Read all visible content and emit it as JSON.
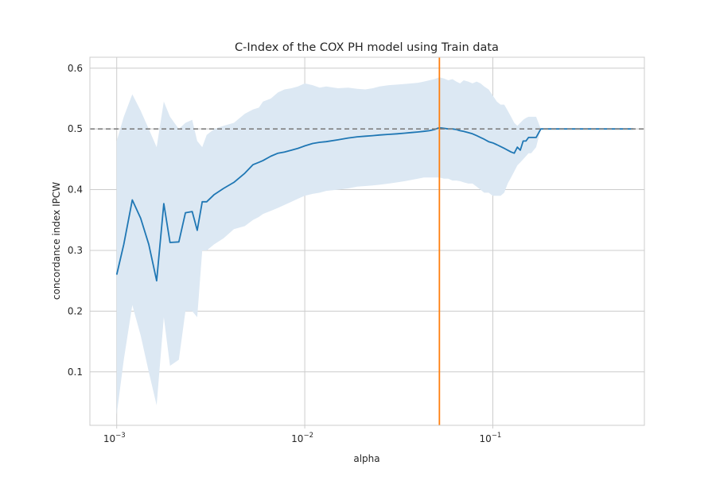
{
  "chart_data": {
    "type": "line",
    "title": "C-Index of the COX PH model using Train data",
    "xlabel": "alpha",
    "ylabel": "concordance index IPCW",
    "x_scale": "log",
    "xlim": [
      0.00072,
      0.64
    ],
    "ylim": [
      0.012,
      0.618
    ],
    "x_ticks": [
      {
        "value": 0.001,
        "base": "10",
        "exp": "−3"
      },
      {
        "value": 0.01,
        "base": "10",
        "exp": "−2"
      },
      {
        "value": 0.1,
        "base": "10",
        "exp": "−1"
      }
    ],
    "y_ticks": [
      {
        "value": 0.1,
        "label": "0.1"
      },
      {
        "value": 0.2,
        "label": "0.2"
      },
      {
        "value": 0.3,
        "label": "0.3"
      },
      {
        "value": 0.4,
        "label": "0.4"
      },
      {
        "value": 0.5,
        "label": "0.5"
      },
      {
        "value": 0.6,
        "label": "0.6"
      }
    ],
    "grid": true,
    "colors": {
      "line": "#1f77b4",
      "band": "#dce8f3",
      "reference_line": "#808080",
      "selected_alpha": "#ff7f0e",
      "grid": "#cccccc",
      "spine": "#cccccc"
    },
    "reference_line": {
      "y": 0.5,
      "style": "dashed"
    },
    "selected_alpha": 0.052,
    "series": [
      {
        "type": "line",
        "x": [
          0.001,
          0.00109,
          0.00121,
          0.00134,
          0.00148,
          0.00163,
          0.00178,
          0.00192,
          0.00214,
          0.00232,
          0.00252,
          0.00268,
          0.00285,
          0.00301,
          0.0033,
          0.0037,
          0.0042,
          0.0048,
          0.0053,
          0.0057,
          0.006,
          0.0066,
          0.0072,
          0.0078,
          0.0085,
          0.0092,
          0.01,
          0.011,
          0.012,
          0.013,
          0.015,
          0.017,
          0.019,
          0.021,
          0.023,
          0.025,
          0.028,
          0.031,
          0.034,
          0.037,
          0.04,
          0.043,
          0.046,
          0.049,
          0.052,
          0.055,
          0.058,
          0.061,
          0.064,
          0.067,
          0.07,
          0.074,
          0.078,
          0.082,
          0.086,
          0.09,
          0.095,
          0.1,
          0.105,
          0.11,
          0.115,
          0.12,
          0.125,
          0.13,
          0.135,
          0.14,
          0.145,
          0.15,
          0.155,
          0.16,
          0.17,
          0.18,
          0.2,
          0.25,
          0.3,
          0.4,
          0.5,
          0.56
        ],
        "y": [
          0.26,
          0.31,
          0.383,
          0.353,
          0.31,
          0.25,
          0.377,
          0.313,
          0.314,
          0.362,
          0.364,
          0.333,
          0.38,
          0.38,
          0.392,
          0.402,
          0.412,
          0.427,
          0.441,
          0.445,
          0.448,
          0.455,
          0.46,
          0.462,
          0.465,
          0.468,
          0.472,
          0.476,
          0.478,
          0.479,
          0.482,
          0.485,
          0.487,
          0.488,
          0.489,
          0.49,
          0.491,
          0.492,
          0.493,
          0.494,
          0.495,
          0.496,
          0.497,
          0.499,
          0.502,
          0.501,
          0.5,
          0.5,
          0.499,
          0.497,
          0.496,
          0.494,
          0.492,
          0.489,
          0.486,
          0.483,
          0.479,
          0.477,
          0.474,
          0.471,
          0.468,
          0.465,
          0.462,
          0.46,
          0.47,
          0.465,
          0.48,
          0.48,
          0.486,
          0.486,
          0.486,
          0.5,
          0.5,
          0.5,
          0.5,
          0.5,
          0.5,
          0.5
        ]
      },
      {
        "type": "band",
        "x": [
          0.001,
          0.00109,
          0.00121,
          0.00134,
          0.00148,
          0.00163,
          0.00178,
          0.00192,
          0.00214,
          0.00232,
          0.00252,
          0.00268,
          0.00285,
          0.00301,
          0.0033,
          0.0037,
          0.0042,
          0.0048,
          0.0053,
          0.0057,
          0.006,
          0.0066,
          0.0072,
          0.0078,
          0.0085,
          0.0092,
          0.01,
          0.011,
          0.012,
          0.013,
          0.015,
          0.017,
          0.019,
          0.021,
          0.023,
          0.025,
          0.028,
          0.031,
          0.034,
          0.037,
          0.04,
          0.043,
          0.046,
          0.049,
          0.052,
          0.055,
          0.058,
          0.061,
          0.064,
          0.067,
          0.07,
          0.074,
          0.078,
          0.082,
          0.086,
          0.09,
          0.095,
          0.1,
          0.105,
          0.11,
          0.115,
          0.12,
          0.125,
          0.13,
          0.135,
          0.14,
          0.145,
          0.15,
          0.155,
          0.16,
          0.17,
          0.18,
          0.2,
          0.25,
          0.3,
          0.4,
          0.5,
          0.56
        ],
        "upper": [
          0.48,
          0.52,
          0.557,
          0.53,
          0.5,
          0.47,
          0.545,
          0.52,
          0.5,
          0.51,
          0.515,
          0.48,
          0.47,
          0.49,
          0.5,
          0.505,
          0.51,
          0.525,
          0.532,
          0.535,
          0.545,
          0.55,
          0.56,
          0.565,
          0.567,
          0.57,
          0.575,
          0.572,
          0.568,
          0.57,
          0.567,
          0.568,
          0.566,
          0.565,
          0.567,
          0.57,
          0.572,
          0.573,
          0.574,
          0.575,
          0.576,
          0.578,
          0.58,
          0.582,
          0.585,
          0.583,
          0.58,
          0.582,
          0.578,
          0.575,
          0.58,
          0.578,
          0.575,
          0.578,
          0.575,
          0.57,
          0.565,
          0.555,
          0.545,
          0.54,
          0.54,
          0.53,
          0.52,
          0.51,
          0.505,
          0.51,
          0.515,
          0.518,
          0.52,
          0.52,
          0.52,
          0.5,
          0.5,
          0.5,
          0.5,
          0.5,
          0.5,
          0.5
        ],
        "lower": [
          0.03,
          0.12,
          0.21,
          0.16,
          0.1,
          0.045,
          0.19,
          0.11,
          0.12,
          0.2,
          0.2,
          0.19,
          0.3,
          0.3,
          0.31,
          0.32,
          0.335,
          0.34,
          0.35,
          0.355,
          0.36,
          0.365,
          0.37,
          0.375,
          0.38,
          0.385,
          0.39,
          0.393,
          0.395,
          0.398,
          0.4,
          0.402,
          0.405,
          0.406,
          0.407,
          0.408,
          0.41,
          0.412,
          0.414,
          0.416,
          0.418,
          0.42,
          0.42,
          0.42,
          0.42,
          0.418,
          0.418,
          0.415,
          0.415,
          0.414,
          0.412,
          0.41,
          0.41,
          0.405,
          0.4,
          0.395,
          0.395,
          0.39,
          0.39,
          0.39,
          0.395,
          0.41,
          0.42,
          0.43,
          0.44,
          0.445,
          0.45,
          0.455,
          0.46,
          0.46,
          0.47,
          0.5,
          0.5,
          0.5,
          0.5,
          0.5,
          0.5,
          0.5
        ]
      }
    ]
  }
}
